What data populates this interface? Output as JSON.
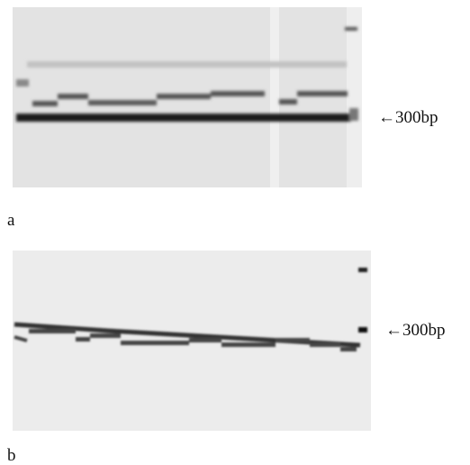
{
  "panels": [
    {
      "label": "a",
      "marker": "←300bp"
    },
    {
      "label": "b",
      "marker": "←300bp"
    }
  ]
}
